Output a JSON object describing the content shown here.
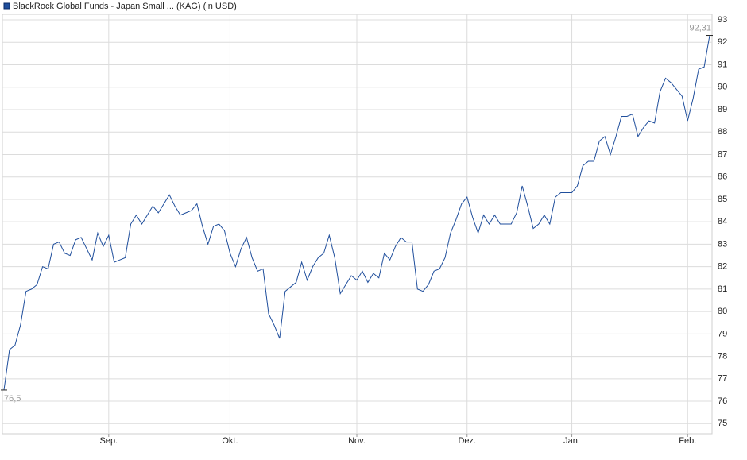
{
  "chart_data": {
    "type": "line",
    "categories": [
      null,
      null,
      null,
      null,
      null,
      null,
      null,
      null,
      null,
      null,
      null,
      null,
      null,
      null,
      null,
      null,
      null,
      null,
      null,
      "Sep.",
      null,
      null,
      null,
      null,
      null,
      null,
      null,
      null,
      null,
      null,
      null,
      null,
      null,
      null,
      null,
      null,
      null,
      null,
      null,
      null,
      null,
      "Okt.",
      null,
      null,
      null,
      null,
      null,
      null,
      null,
      null,
      null,
      null,
      null,
      null,
      null,
      null,
      null,
      null,
      null,
      null,
      null,
      null,
      null,
      null,
      "Nov.",
      null,
      null,
      null,
      null,
      null,
      null,
      null,
      null,
      null,
      null,
      null,
      null,
      null,
      null,
      null,
      null,
      null,
      null,
      null,
      "Dez.",
      null,
      null,
      null,
      null,
      null,
      null,
      null,
      null,
      null,
      null,
      null,
      null,
      null,
      null,
      null,
      null,
      null,
      null,
      "Jan.",
      null,
      null,
      null,
      null,
      null,
      null,
      null,
      null,
      null,
      null,
      null,
      null,
      null,
      null,
      null,
      null,
      null,
      null,
      null,
      null,
      "Feb.",
      null,
      null,
      null,
      null
    ],
    "series": [
      {
        "name": "BlackRock Global Funds - Japan Small ... (KAG) (in USD)",
        "color": "#1f4e9c",
        "values": [
          76.5,
          78.3,
          78.5,
          79.4,
          80.9,
          81.0,
          81.2,
          82.0,
          81.9,
          83.0,
          83.1,
          82.6,
          82.5,
          83.2,
          83.3,
          82.8,
          82.3,
          83.5,
          82.9,
          83.4,
          82.2,
          82.3,
          82.4,
          83.9,
          84.3,
          83.9,
          84.3,
          84.7,
          84.4,
          84.8,
          85.2,
          84.7,
          84.3,
          84.4,
          84.5,
          84.8,
          83.8,
          83.0,
          83.8,
          83.9,
          83.6,
          82.6,
          82.0,
          82.8,
          83.3,
          82.4,
          81.8,
          81.9,
          79.9,
          79.4,
          78.8,
          80.9,
          81.1,
          81.3,
          82.2,
          81.4,
          82.0,
          82.4,
          82.6,
          83.4,
          82.4,
          80.8,
          81.2,
          81.6,
          81.4,
          81.8,
          81.3,
          81.7,
          81.5,
          82.6,
          82.3,
          82.9,
          83.3,
          83.1,
          83.1,
          81.0,
          80.9,
          81.2,
          81.8,
          81.9,
          82.4,
          83.5,
          84.1,
          84.8,
          85.1,
          84.2,
          83.5,
          84.3,
          83.9,
          84.3,
          83.9,
          83.9,
          83.9,
          84.4,
          85.6,
          84.7,
          83.7,
          83.9,
          84.3,
          83.9,
          85.1,
          85.3,
          85.3,
          85.3,
          85.6,
          86.5,
          86.7,
          86.7,
          87.6,
          87.8,
          87.0,
          87.8,
          88.7,
          88.7,
          88.8,
          87.8,
          88.2,
          88.5,
          88.4,
          89.8,
          90.4,
          90.2,
          89.9,
          89.6,
          88.5,
          89.5,
          90.8,
          90.9,
          92.31
        ],
        "value_labels": [
          "76,5",
          null,
          null,
          null,
          null,
          null,
          null,
          null,
          null,
          null,
          null,
          null,
          null,
          null,
          null,
          null,
          null,
          null,
          null,
          null,
          null,
          null,
          null,
          null,
          null,
          null,
          null,
          null,
          null,
          null,
          null,
          null,
          null,
          null,
          null,
          null,
          null,
          null,
          null,
          null,
          null,
          null,
          null,
          null,
          null,
          null,
          null,
          null,
          null,
          null,
          null,
          null,
          null,
          null,
          null,
          null,
          null,
          null,
          null,
          null,
          null,
          null,
          null,
          null,
          null,
          null,
          null,
          null,
          null,
          null,
          null,
          null,
          null,
          null,
          null,
          null,
          null,
          null,
          null,
          null,
          null,
          null,
          null,
          null,
          null,
          null,
          null,
          null,
          null,
          null,
          null,
          null,
          null,
          null,
          null,
          null,
          null,
          null,
          null,
          null,
          null,
          null,
          null,
          null,
          null,
          null,
          null,
          null,
          null,
          null,
          null,
          null,
          null,
          null,
          null,
          null,
          null,
          null,
          null,
          null,
          null,
          null,
          null,
          null,
          null,
          null,
          null,
          null,
          "92,31"
        ]
      }
    ],
    "ylim": [
      74.55,
      93.25
    ],
    "yticks": [
      75,
      76,
      77,
      78,
      79,
      80,
      81,
      82,
      83,
      84,
      85,
      86,
      87,
      88,
      89,
      90,
      91,
      92,
      93
    ],
    "grid": true
  }
}
